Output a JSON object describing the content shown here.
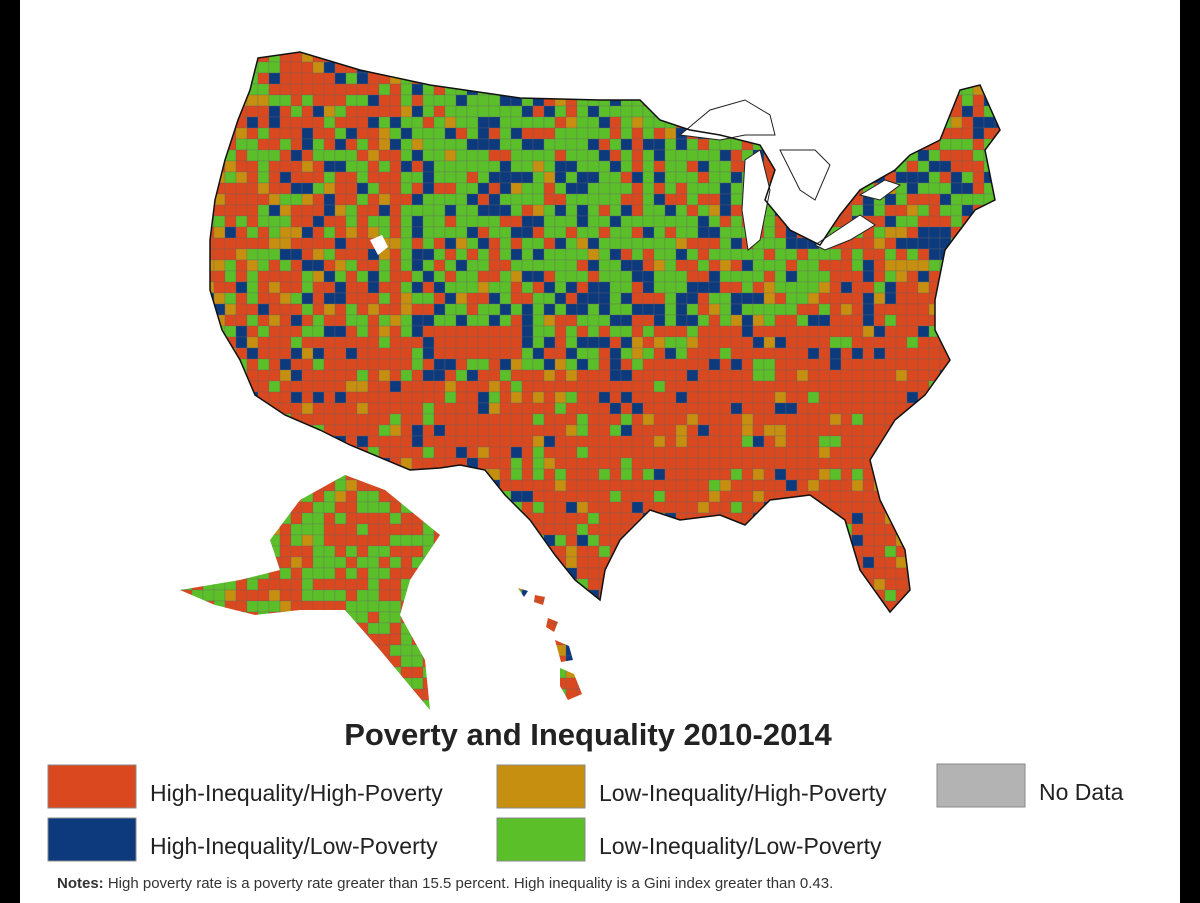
{
  "title": "Poverty and Inequality 2010-2014",
  "legend": [
    {
      "label": "High-Inequality/High-Poverty",
      "color": "#d9481e"
    },
    {
      "label": "High-Inequality/Low-Poverty",
      "color": "#0c3a7c"
    },
    {
      "label": "Low-Inequality/High-Poverty",
      "color": "#c78f10"
    },
    {
      "label": "Low-Inequality/Low-Poverty",
      "color": "#5bbf29"
    },
    {
      "label": "No Data",
      "color": "#b3b3b3"
    }
  ],
  "notes": {
    "label": "Notes:",
    "text": "High poverty rate is a poverty rate greater than 15.5 percent. High inequality is a Gini index greater than 0.43."
  }
}
